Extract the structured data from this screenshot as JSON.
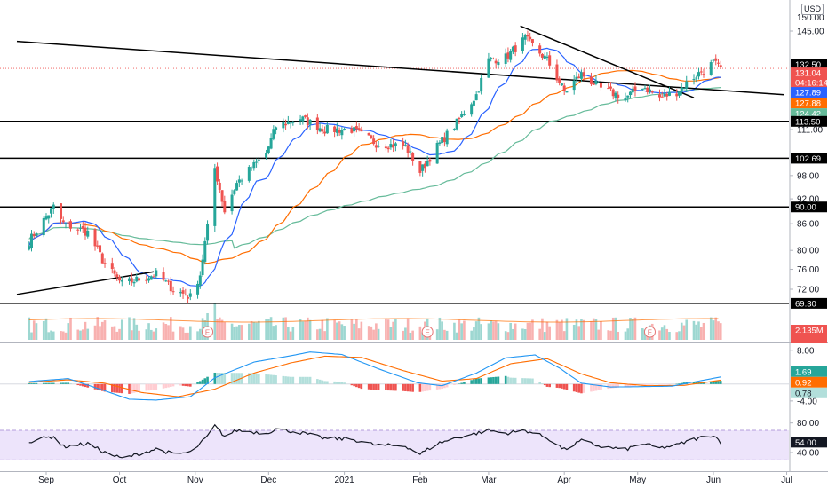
{
  "currency_label": "USD",
  "colors": {
    "up": "#26a69a",
    "down": "#ef5350",
    "sma_short": "#2962ff",
    "sma_mid": "#ff6d00",
    "sma_long": "#66bb9a",
    "macd": "#2196f3",
    "signal": "#ff6d00",
    "rsi": "#131722",
    "rsi_band": "#ede4fb",
    "trendline": "#000000"
  },
  "chart_data": [
    {
      "type": "candlestick",
      "time_labels": [
        "Sep",
        "Oct",
        "Nov",
        "Dec",
        "2021",
        "Feb",
        "Mar",
        "Apr",
        "May",
        "Jun",
        "Jul"
      ],
      "price_axis": {
        "ticks": [
          145.0,
          132.5,
          111.0,
          102.69,
          98.0,
          92.0,
          86.0,
          80.0,
          76.0,
          72.0
        ],
        "ylim": [
          67,
          152
        ],
        "scale": "log"
      },
      "horizontal_levels": [
        113.5,
        102.69,
        90.0,
        69.3
      ],
      "price_badges": [
        {
          "text": "132.50",
          "kind": "dark"
        },
        {
          "text": "131.04",
          "kind": "down"
        },
        {
          "text": "04:16:14",
          "kind": "down"
        },
        {
          "text": "127.89",
          "kind": "sma_short"
        },
        {
          "text": "127.88",
          "kind": "sma_mid"
        },
        {
          "text": "124.42",
          "kind": "sma_long"
        },
        {
          "text": "113.50",
          "kind": "dark"
        },
        {
          "text": "102.69",
          "kind": "dark"
        },
        {
          "text": "90.00",
          "kind": "dark"
        },
        {
          "text": "69.30",
          "kind": "dark"
        }
      ],
      "price_key_points": [
        [
          "Aug 25",
          82
        ],
        [
          "Sep 4",
          90
        ],
        [
          "Sep 8",
          86
        ],
        [
          "Sep 18",
          84
        ],
        [
          "Sep 25",
          77
        ],
        [
          "Oct 2",
          73
        ],
        [
          "Oct 9",
          74
        ],
        [
          "Oct 16",
          75
        ],
        [
          "Oct 23",
          72
        ],
        [
          "Oct 30",
          70.5
        ],
        [
          "Nov 3",
          75
        ],
        [
          "Nov 6",
          85
        ],
        [
          "Nov 9",
          100
        ],
        [
          "Nov 13",
          89
        ],
        [
          "Nov 18",
          96
        ],
        [
          "Nov 30",
          104
        ],
        [
          "Dec 4",
          112
        ],
        [
          "Dec 14",
          114.5
        ],
        [
          "Dec 24",
          111
        ],
        [
          "Jan 4",
          111
        ],
        [
          "Jan 14",
          107
        ],
        [
          "Jan 26",
          106
        ],
        [
          "Feb 1",
          99
        ],
        [
          "Feb 8",
          106
        ],
        [
          "Feb 16",
          113
        ],
        [
          "Feb 24",
          122
        ],
        [
          "Mar 1",
          134
        ],
        [
          "Mar 8",
          135
        ],
        [
          "Mar 16",
          142
        ],
        [
          "Mar 25",
          134
        ],
        [
          "Apr 1",
          123
        ],
        [
          "Apr 8",
          129
        ],
        [
          "Apr 16",
          124
        ],
        [
          "Apr 26",
          121
        ],
        [
          "May 3",
          125
        ],
        [
          "May 10",
          121
        ],
        [
          "May 17",
          123
        ],
        [
          "May 24",
          128
        ],
        [
          "Jun 1",
          133
        ],
        [
          "Jun 4",
          131
        ]
      ],
      "indicators": {
        "sma_short": 127.89,
        "sma_mid": 127.88,
        "sma_long": 124.42
      },
      "trendlines": [
        {
          "from": [
            "Aug 20",
            141
          ],
          "to": [
            "Jun 30",
            122
          ]
        },
        {
          "from": [
            "Aug 20",
            71
          ],
          "to": [
            "Oct 15",
            75.5
          ]
        },
        {
          "from": [
            "Mar 14",
            147
          ],
          "to": [
            "May 24",
            121
          ]
        }
      ]
    },
    {
      "type": "bar",
      "name": "volume",
      "badges": [
        {
          "text": "2.135M",
          "kind": "down"
        }
      ],
      "earnings_markers": [
        "Nov 6",
        "Feb 4",
        "May 6"
      ],
      "earnings_label": "E"
    },
    {
      "type": "line",
      "name": "macd",
      "ticks": [
        8.0,
        -4.0
      ],
      "ylim": [
        -5.5,
        9.0
      ],
      "values": {
        "macd": 1.69,
        "signal": 0.92,
        "histogram": 0.78
      },
      "badges": [
        {
          "text": "1.69",
          "kind": "macd"
        },
        {
          "text": "0.92",
          "kind": "signal"
        },
        {
          "text": "0.78",
          "kind": "hist"
        }
      ],
      "macd_key_points": [
        [
          "Aug 25",
          0.6
        ],
        [
          "Sep 10",
          1.3
        ],
        [
          "Sep 25",
          -1.6
        ],
        [
          "Oct 5",
          -3.6
        ],
        [
          "Oct 16",
          -3.8
        ],
        [
          "Oct 30",
          -3.0
        ],
        [
          "Nov 9",
          1.5
        ],
        [
          "Nov 25",
          5.2
        ],
        [
          "Dec 10",
          6.7
        ],
        [
          "Dec 18",
          7.6
        ],
        [
          "Dec 31",
          7.0
        ],
        [
          "Jan 15",
          3.6
        ],
        [
          "Jan 31",
          0.3
        ],
        [
          "Feb 10",
          -0.4
        ],
        [
          "Feb 24",
          2.6
        ],
        [
          "Mar 8",
          6.2
        ],
        [
          "Mar 20",
          6.9
        ],
        [
          "Mar 30",
          3.8
        ],
        [
          "Apr 8",
          0.2
        ],
        [
          "Apr 20",
          -0.7
        ],
        [
          "May 3",
          -0.6
        ],
        [
          "May 15",
          -0.5
        ],
        [
          "May 25",
          0.6
        ],
        [
          "Jun 4",
          1.69
        ]
      ],
      "signal_key_points": [
        [
          "Aug 25",
          0.4
        ],
        [
          "Sep 10",
          1.0
        ],
        [
          "Sep 25",
          0.2
        ],
        [
          "Oct 10",
          -2.0
        ],
        [
          "Oct 25",
          -3.0
        ],
        [
          "Nov 9",
          -1.2
        ],
        [
          "Nov 25",
          2.6
        ],
        [
          "Dec 10",
          5.0
        ],
        [
          "Dec 24",
          6.6
        ],
        [
          "Jan 8",
          6.3
        ],
        [
          "Jan 25",
          3.2
        ],
        [
          "Feb 10",
          0.7
        ],
        [
          "Feb 24",
          1.3
        ],
        [
          "Mar 10",
          4.8
        ],
        [
          "Mar 25",
          6.0
        ],
        [
          "Apr 8",
          2.4
        ],
        [
          "Apr 20",
          0.3
        ],
        [
          "May 5",
          -0.4
        ],
        [
          "May 20",
          -0.3
        ],
        [
          "Jun 4",
          0.92
        ]
      ]
    },
    {
      "type": "line",
      "name": "rsi",
      "ticks": [
        80.0,
        40.0
      ],
      "ylim": [
        28,
        88
      ],
      "band": [
        30,
        70
      ],
      "value": 54.0,
      "badges": [
        {
          "text": "54.00",
          "kind": "rsi"
        }
      ],
      "key_points": [
        [
          "Aug 25",
          55
        ],
        [
          "Sep 4",
          62
        ],
        [
          "Sep 8",
          48
        ],
        [
          "Sep 18",
          52
        ],
        [
          "Sep 25",
          40
        ],
        [
          "Oct 2",
          32
        ],
        [
          "Oct 9",
          38
        ],
        [
          "Oct 16",
          45
        ],
        [
          "Oct 23",
          38
        ],
        [
          "Oct 30",
          40
        ],
        [
          "Nov 3",
          52
        ],
        [
          "Nov 6",
          62
        ],
        [
          "Nov 9",
          76
        ],
        [
          "Nov 13",
          62
        ],
        [
          "Nov 18",
          70
        ],
        [
          "Nov 30",
          66
        ],
        [
          "Dec 4",
          72
        ],
        [
          "Dec 14",
          67
        ],
        [
          "Dec 24",
          59
        ],
        [
          "Jan 4",
          58
        ],
        [
          "Jan 14",
          50
        ],
        [
          "Jan 26",
          49
        ],
        [
          "Feb 1",
          38
        ],
        [
          "Feb 8",
          52
        ],
        [
          "Feb 16",
          60
        ],
        [
          "Feb 24",
          66
        ],
        [
          "Mar 1",
          70
        ],
        [
          "Mar 8",
          66
        ],
        [
          "Mar 16",
          70
        ],
        [
          "Mar 25",
          60
        ],
        [
          "Apr 1",
          44
        ],
        [
          "Apr 8",
          56
        ],
        [
          "Apr 16",
          48
        ],
        [
          "Apr 26",
          44
        ],
        [
          "May 3",
          52
        ],
        [
          "May 10",
          46
        ],
        [
          "May 17",
          50
        ],
        [
          "May 24",
          58
        ],
        [
          "Jun 1",
          64
        ],
        [
          "Jun 4",
          54
        ]
      ]
    }
  ]
}
